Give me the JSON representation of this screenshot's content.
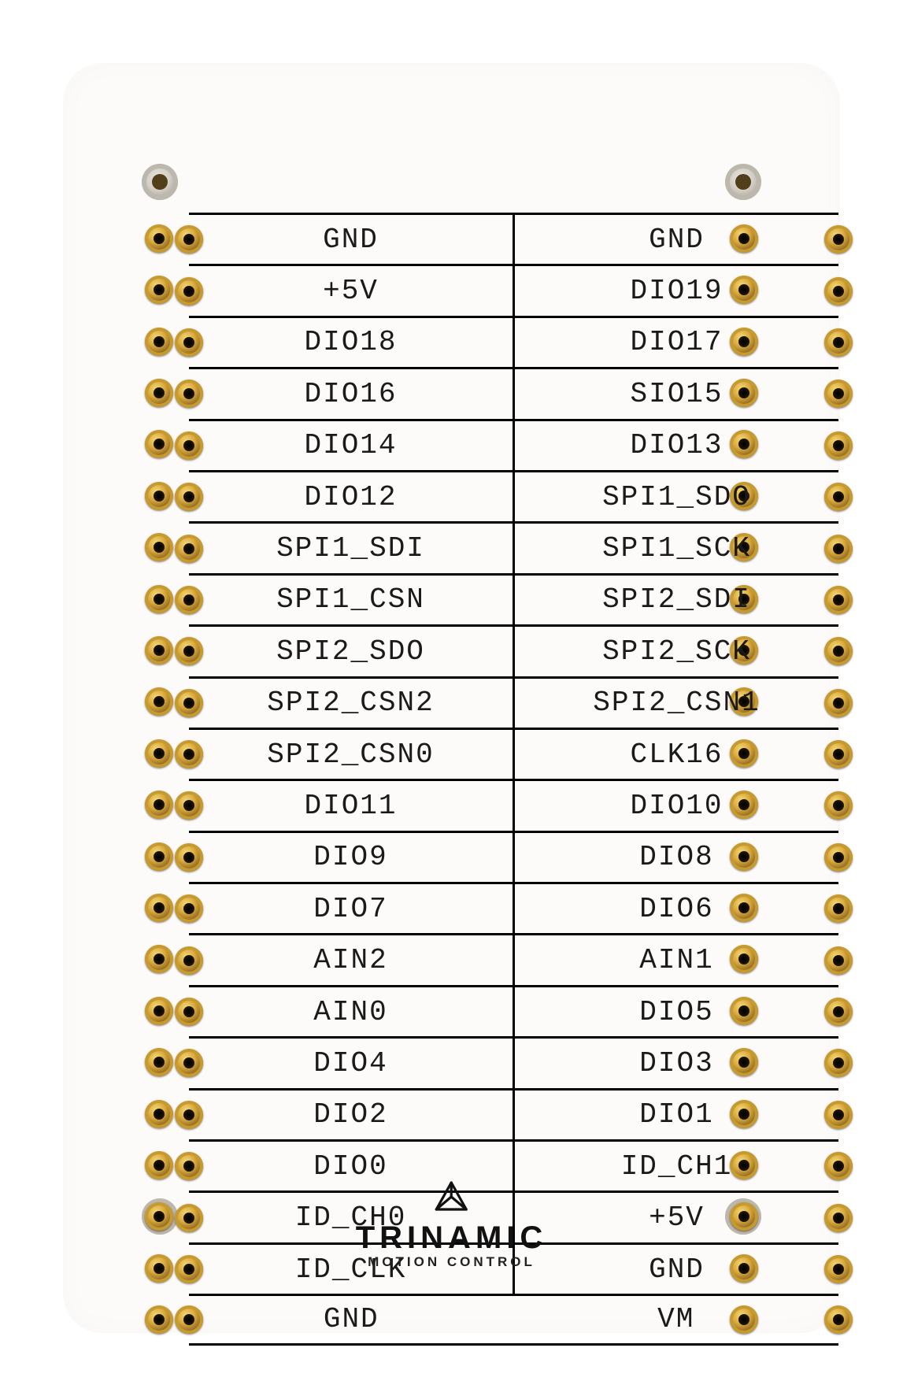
{
  "board": {
    "background_color": "#fcfbf9",
    "text_color": "#1a1a1a",
    "outline_color": "#000000",
    "pad_gradient": [
      "#f4d977",
      "#d9a93d",
      "#6c4b14"
    ],
    "pad_ring": "#c79a2f",
    "pad_hole": "#000000",
    "font_family": "OCR A Extended / monospace",
    "label_fontsize": 36,
    "rows": 22,
    "row_height": 65.4
  },
  "pins": {
    "left": [
      "GND",
      "+5V",
      "DIO18",
      "DIO16",
      "DIO14",
      "DIO12",
      "SPI1_SDI",
      "SPI1_CSN",
      "SPI2_SDO",
      "SPI2_CSN2",
      "SPI2_CSN0",
      "DIO11",
      "DIO9",
      "DIO7",
      "AIN2",
      "AIN0",
      "DIO4",
      "DIO2",
      "DIO0",
      "ID_CH0",
      "ID_CLK",
      "GND"
    ],
    "right": [
      "GND",
      "DIO19",
      "DIO17",
      "SIO15",
      "DIO13",
      "SPI1_SDO",
      "SPI1_SCK",
      "SPI2_SDI",
      "SPI2_SCK",
      "SPI2_CSN1",
      "CLK16",
      "DIO10",
      "DIO8",
      "DIO6",
      "AIN1",
      "DIO5",
      "DIO3",
      "DIO1",
      "ID_CH1",
      "+5V",
      "GND",
      "VM"
    ]
  },
  "brand": {
    "name": "TRINAMIC",
    "subtitle": "MOTION CONTROL",
    "logo_color": "#111111"
  }
}
